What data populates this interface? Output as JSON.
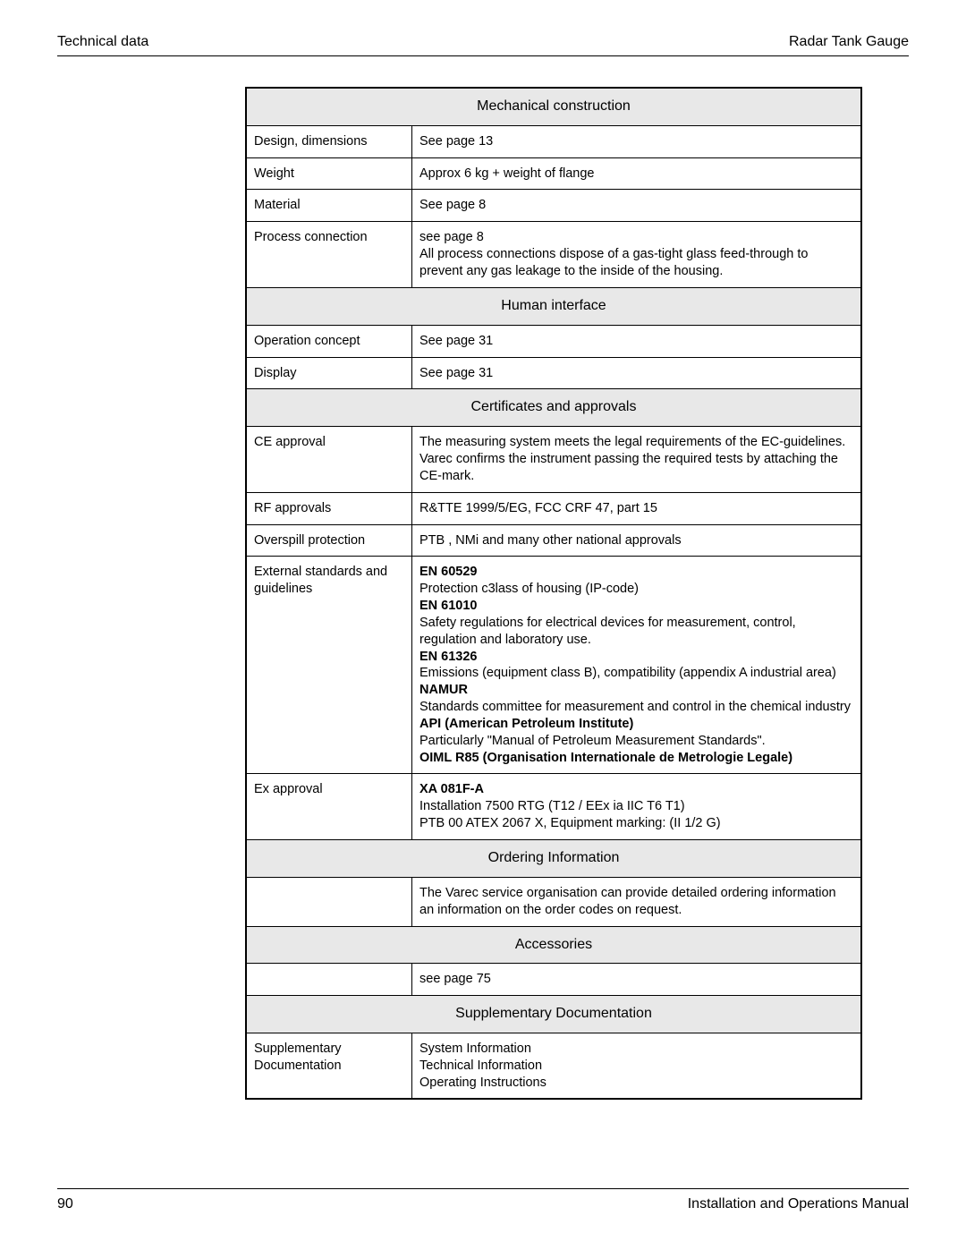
{
  "header": {
    "left": "Technical data",
    "right": "Radar Tank Gauge"
  },
  "sections": [
    {
      "title": "Mechanical construction",
      "rows": [
        {
          "label": "Design, dimensions",
          "value": "See page 13"
        },
        {
          "label": "Weight",
          "value": "Approx 6 kg + weight of flange"
        },
        {
          "label": "Material",
          "value": "See page 8"
        },
        {
          "label": "Process connection",
          "value": "see page 8\nAll process connections dispose of a gas-tight glass feed-through to prevent any gas leakage to the inside of the housing."
        }
      ]
    },
    {
      "title": "Human interface",
      "rows": [
        {
          "label": "Operation concept",
          "value": "See page 31"
        },
        {
          "label": "Display",
          "value": "See page 31"
        }
      ]
    },
    {
      "title": "Certificates and approvals",
      "rows": [
        {
          "label": "CE approval",
          "value": "The measuring system meets the legal requirements of the EC-guidelines. Varec confirms the instrument passing the required tests by attaching the CE-mark."
        },
        {
          "label": "RF approvals",
          "value": "R&TTE 1999/5/EG, FCC CRF 47, part 15"
        },
        {
          "label": "Overspill protection",
          "value": "PTB , NMi and many other national approvals"
        },
        {
          "label": "External standards and guidelines",
          "segments": [
            {
              "text": "EN 60529",
              "bold": true
            },
            {
              "text": "Protection c3lass of housing (IP-code)"
            },
            {
              "text": "EN 61010",
              "bold": true
            },
            {
              "text": "Safety regulations for electrical devices for measurement, control, regulation and laboratory use."
            },
            {
              "text": "EN 61326",
              "bold": true
            },
            {
              "text": "Emissions (equipment class B), compatibility (appendix A industrial area)"
            },
            {
              "text": "NAMUR",
              "bold": true
            },
            {
              "text": "Standards committee for measurement and control in the chemical industry"
            },
            {
              "text": "API (American Petroleum Institute)",
              "bold": true
            },
            {
              "text": "Particularly \"Manual of Petroleum Measurement Standards\"."
            },
            {
              "text": "OIML R85 (Organisation Internationale de Metrologie Legale)",
              "bold": true
            }
          ]
        },
        {
          "label": "Ex approval",
          "segments": [
            {
              "text": "XA 081F-A",
              "bold": true
            },
            {
              "text": "Installation 7500 RTG (T12 / EEx ia IIC T6 T1)"
            },
            {
              "text": "PTB 00 ATEX 2067 X, Equipment marking: (II 1/2 G)"
            }
          ]
        }
      ]
    },
    {
      "title": "Ordering Information",
      "rows": [
        {
          "label": "",
          "value": "The Varec service organisation can provide detailed ordering information an information on the order codes on request."
        }
      ]
    },
    {
      "title": "Accessories",
      "rows": [
        {
          "label": "",
          "value": "see page 75"
        }
      ]
    },
    {
      "title": "Supplementary Documentation",
      "rows": [
        {
          "label": "Supplementary Documentation",
          "value": "System Information\nTechnical Information\nOperating Instructions"
        }
      ]
    }
  ],
  "footer": {
    "page_number": "90",
    "right": "Installation and Operations Manual"
  }
}
